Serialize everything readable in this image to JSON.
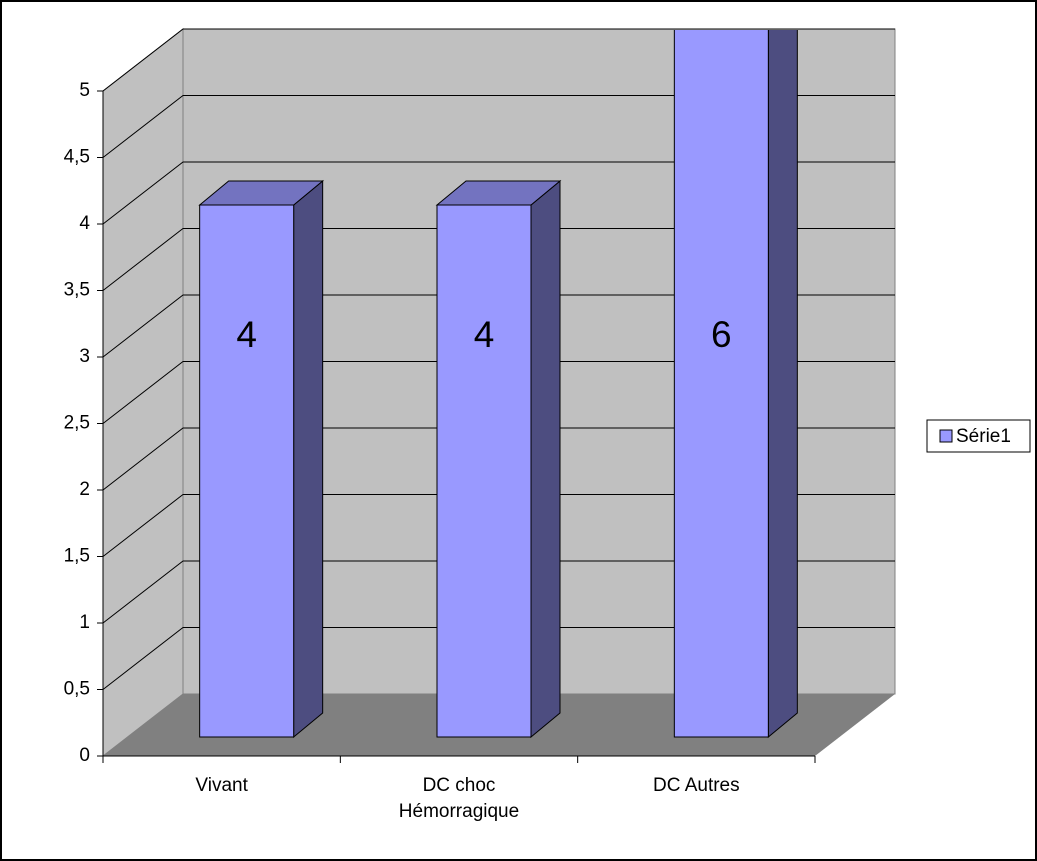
{
  "chart_data": {
    "type": "bar3d",
    "categories": [
      "Vivant",
      "DC choc Hémorragique",
      "DC Autres"
    ],
    "series": [
      {
        "name": "Série1",
        "color": "#9999ff",
        "values": [
          4,
          4,
          6
        ]
      }
    ],
    "ylim": [
      0,
      5
    ],
    "yticks": [
      0,
      {
        "value": 0.5,
        "label": "0,5"
      },
      1,
      {
        "value": 1.5,
        "label": "1,5"
      },
      2,
      {
        "value": 2.5,
        "label": "2,5"
      },
      3,
      {
        "value": 3.5,
        "label": "3,5"
      },
      4,
      {
        "value": 4.5,
        "label": "4,5"
      },
      5
    ],
    "grid": true,
    "legend": "right"
  }
}
